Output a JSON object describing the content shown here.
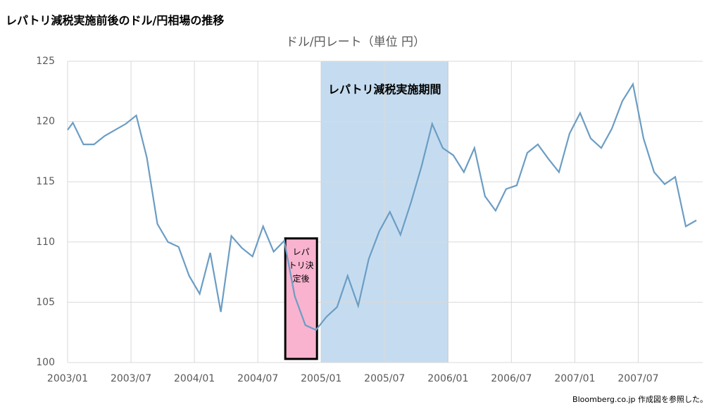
{
  "chart_data": {
    "type": "line",
    "header": "レパトリ減税実施前後のドル/円相場の推移",
    "title": "ドル/円レート（単位 円）",
    "source": "Bloomberg.co.jp 作成図を参照した。",
    "x": [
      0,
      0.5,
      1.5,
      2.5,
      3.5,
      4.5,
      5.5,
      6.5,
      7.5,
      8.5,
      9.5,
      10.5,
      11.5,
      12.5,
      13.5,
      14.5,
      15.5,
      16.5,
      17.5,
      18.5,
      19.5,
      20.5,
      21.5,
      22.5,
      23.5,
      24.5,
      25.5,
      26.5,
      27.5,
      28.5,
      29.5,
      30.5,
      31.5,
      32.5,
      33.5,
      34.5,
      35.5,
      36.5,
      37.5,
      38.5,
      39.5,
      40.5,
      41.5,
      42.5,
      43.5,
      44.5,
      45.5,
      46.5,
      47.5,
      48.5,
      49.5,
      50.5,
      51.5,
      52.5,
      53.5,
      54.5,
      55.5,
      56.5,
      57.5,
      58.5,
      59.5
    ],
    "series": [
      {
        "name": "ドル/円",
        "color": "#6b9dc4",
        "values": [
          119.3,
          119.9,
          118.1,
          118.1,
          118.8,
          119.3,
          119.8,
          120.5,
          117,
          111.5,
          110,
          109.6,
          107.2,
          105.7,
          109.1,
          104.2,
          110.5,
          109.5,
          108.8,
          111.3,
          109.2,
          110.1,
          105.5,
          103.1,
          102.7,
          103.8,
          104.6,
          107.2,
          104.7,
          108.6,
          110.9,
          112.5,
          110.6,
          113.3,
          116.3,
          119.8,
          117.8,
          117.2,
          115.8,
          117.8,
          113.8,
          112.6,
          114.4,
          114.7,
          117.4,
          118.1,
          116.9,
          115.8,
          119,
          120.7,
          118.6,
          117.8,
          119.4,
          121.7,
          123.1,
          118.6,
          115.8,
          114.8,
          115.4,
          111.3,
          111.8
        ]
      }
    ],
    "xlim": [
      0,
      60.1
    ],
    "xticks": [
      {
        "value": 0,
        "label": "2003/01"
      },
      {
        "value": 6,
        "label": "2003/07"
      },
      {
        "value": 12,
        "label": "2004/01"
      },
      {
        "value": 18,
        "label": "2004/07"
      },
      {
        "value": 24,
        "label": "2005/01"
      },
      {
        "value": 30,
        "label": "2005/07"
      },
      {
        "value": 36,
        "label": "2006/01"
      },
      {
        "value": 42,
        "label": "2006/07"
      },
      {
        "value": 48,
        "label": "2007/01"
      },
      {
        "value": 54,
        "label": "2007/07"
      }
    ],
    "ylim": [
      100,
      125
    ],
    "yticks": [
      100,
      105,
      110,
      115,
      120,
      125
    ],
    "grid": true,
    "shaded_region": {
      "x": [
        24,
        36
      ],
      "color": "#c5dcf0",
      "label": "レパトリ減税実施期間"
    },
    "box_annotation": {
      "x": [
        20.6,
        23.6
      ],
      "y": [
        100.3,
        110.3
      ],
      "color": "#f9b3cf",
      "lines": [
        "レパ",
        "トリ決",
        "定後"
      ]
    }
  }
}
